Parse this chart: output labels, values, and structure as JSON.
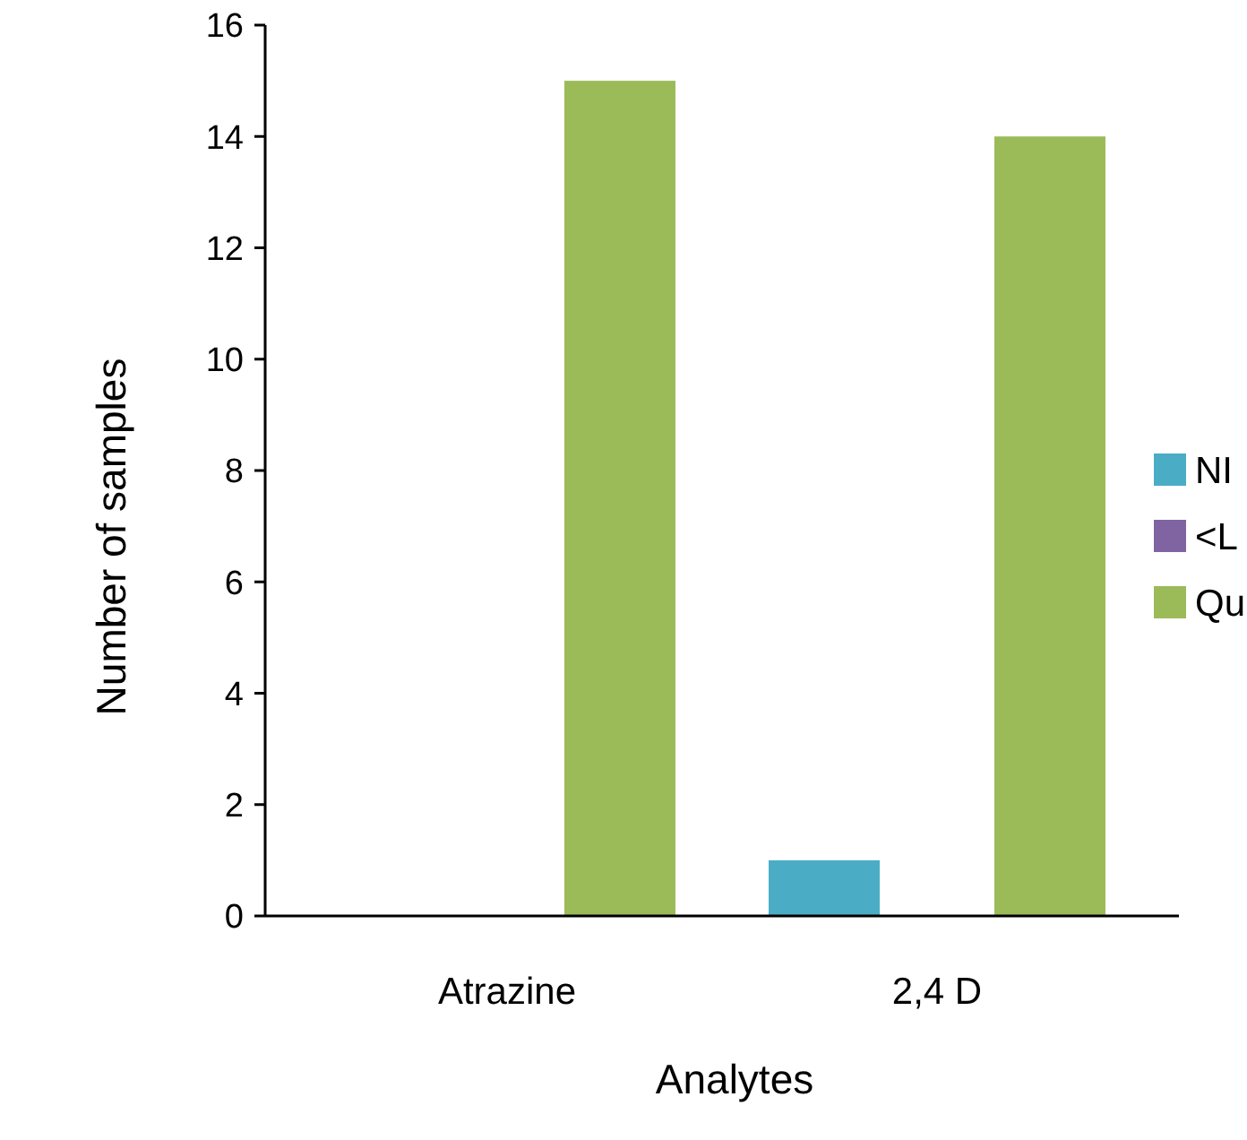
{
  "chart_data": {
    "type": "bar",
    "xlabel": "Analytes",
    "ylabel": "Number of samples",
    "categories": [
      "Atrazine",
      "2,4 D"
    ],
    "series": [
      {
        "name": "NI",
        "color": "#4bacc6",
        "values": [
          0,
          1
        ]
      },
      {
        "name": "<L",
        "color": "#8064a2",
        "values": [
          0,
          0
        ]
      },
      {
        "name": "Qu",
        "color": "#9bbb59",
        "values": [
          15,
          14
        ]
      }
    ],
    "ylim": [
      0,
      16
    ],
    "yticks": [
      0,
      2,
      4,
      6,
      8,
      10,
      12,
      14,
      16
    ],
    "grid": false,
    "legend": "right"
  }
}
